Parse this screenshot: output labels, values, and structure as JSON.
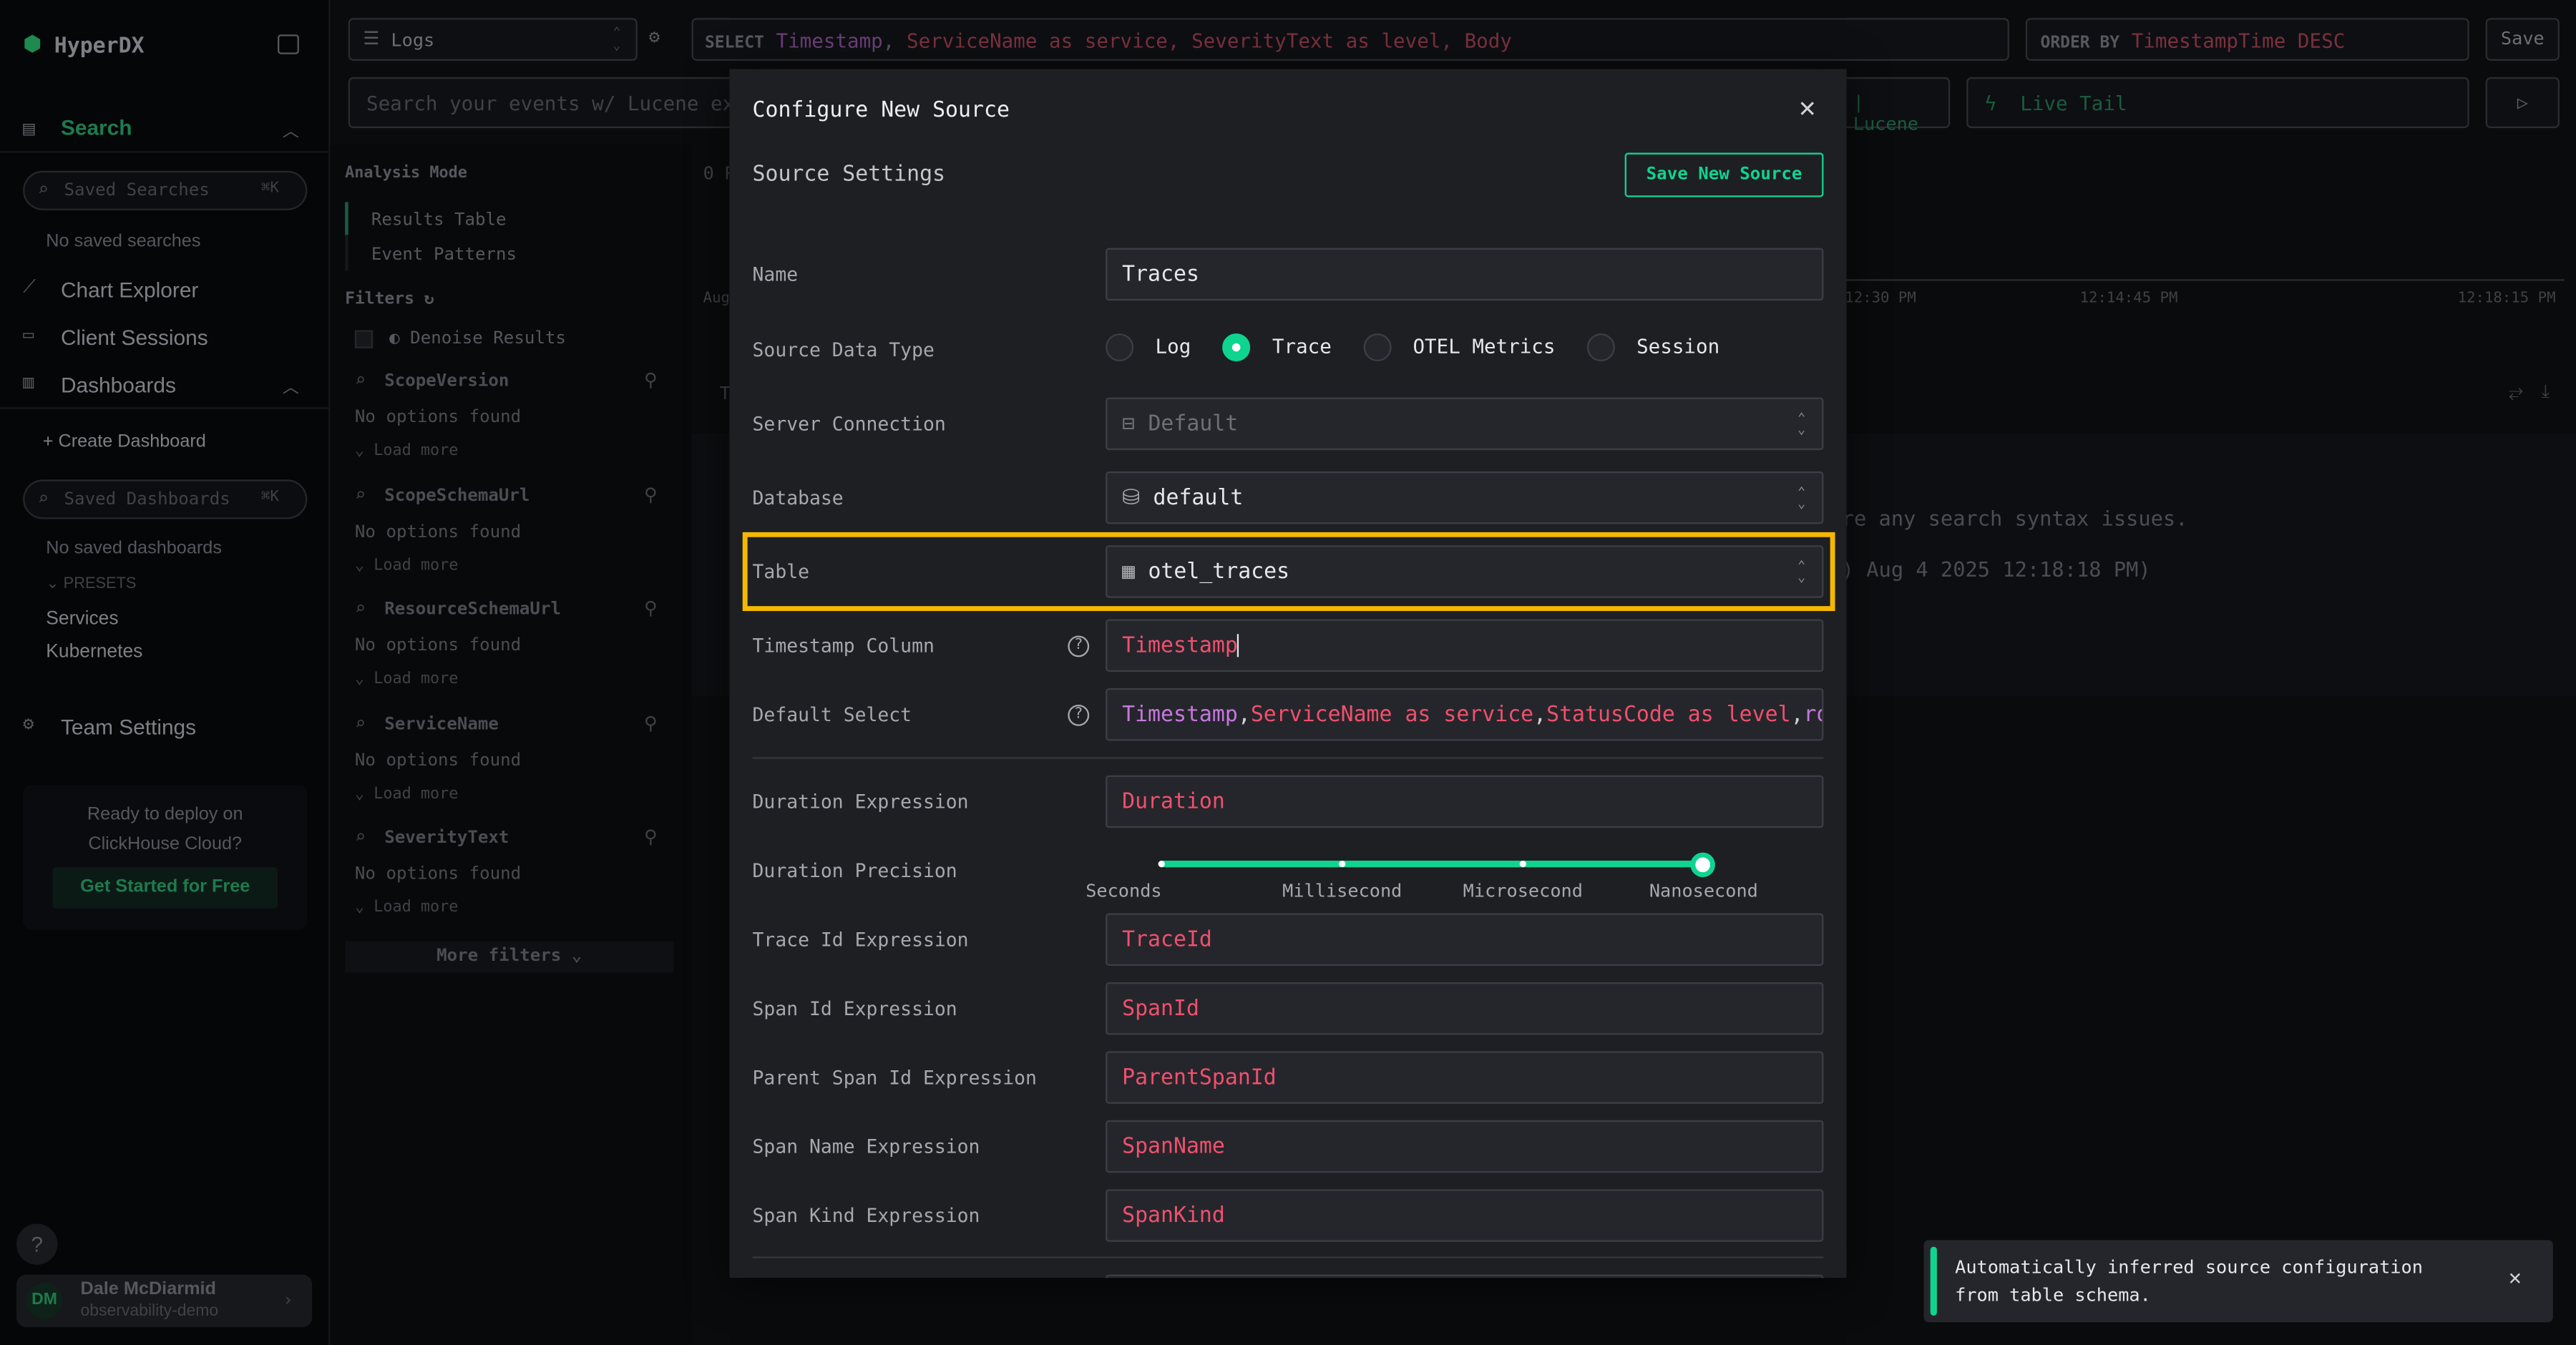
{
  "app": {
    "name": "HyperDX",
    "accent": "#0fd48f",
    "highlight": "#f5b800"
  },
  "sidebar": {
    "search_label": "Search",
    "saved_searches_placeholder": "Saved Searches",
    "shortcut": "⌘K",
    "no_saved_searches": "No saved searches",
    "chart_explorer": "Chart Explorer",
    "client_sessions": "Client Sessions",
    "dashboards": "Dashboards",
    "create_dashboard": "Create Dashboard",
    "saved_dashboards_placeholder": "Saved Dashboards",
    "no_saved_dashboards": "No saved dashboards",
    "presets_label": "PRESETS",
    "presets": [
      "Services",
      "Kubernetes"
    ],
    "team_settings": "Team Settings",
    "promo": {
      "text": "Ready to deploy on ClickHouse Cloud?",
      "button": "Get Started for Free"
    },
    "help": "?",
    "user": {
      "initials": "DM",
      "name": "Dale McDiarmid",
      "team": "observability-demo"
    }
  },
  "topbar": {
    "source": "Logs",
    "select_kw": "SELECT",
    "select_parts": [
      "Timestamp",
      ", ",
      "ServiceName as service, SeverityText as level, Body"
    ],
    "order_kw": "ORDER BY",
    "order_value": "TimestampTime DESC",
    "save": "Save",
    "search_placeholder": "Search your events w/ Lucene ex.",
    "lucene": "Lucene",
    "live_tail": "Live Tail"
  },
  "filters": {
    "analysis_mode": "Analysis Mode",
    "modes": [
      "Results Table",
      "Event Patterns"
    ],
    "filters_label": "Filters",
    "denoise": "Denoise Results",
    "groups": [
      {
        "name": "ScopeVersion",
        "empty": "No options found",
        "more": "Load more"
      },
      {
        "name": "ScopeSchemaUrl",
        "empty": "No options found",
        "more": "Load more"
      },
      {
        "name": "ResourceSchemaUrl",
        "empty": "No options found",
        "more": "Load more"
      },
      {
        "name": "ServiceName",
        "empty": "No options found",
        "more": "Load more"
      },
      {
        "name": "SeverityText",
        "empty": "No options found",
        "more": "Load more"
      }
    ],
    "more_filters": "More filters"
  },
  "results": {
    "count_prefix": "0 R",
    "axis_start": "Aug",
    "ticks": [
      "12:30 PM",
      "12:14:45 PM",
      "12:18:15 PM"
    ],
    "table_prefix": "T",
    "msg1": "re any search syntax issues.",
    "msg2": ") Aug 4 2025 12:18:18 PM)"
  },
  "modal": {
    "title": "Configure New Source",
    "section": "Source Settings",
    "save_button": "Save New Source",
    "fields": {
      "name": {
        "label": "Name",
        "value": "Traces"
      },
      "type": {
        "label": "Source Data Type",
        "options": [
          "Log",
          "Trace",
          "OTEL Metrics",
          "Session"
        ],
        "selected": "Trace"
      },
      "server": {
        "label": "Server Connection",
        "value": "Default"
      },
      "database": {
        "label": "Database",
        "value": "default"
      },
      "table": {
        "label": "Table",
        "value": "otel_traces"
      },
      "timestamp": {
        "label": "Timestamp Column",
        "value": "Timestamp"
      },
      "default_select": {
        "label": "Default Select",
        "parts": [
          "Timestamp",
          ", ",
          "ServiceName as service",
          ", ",
          "StatusCode as level",
          ", ",
          "ro"
        ]
      },
      "duration": {
        "label": "Duration Expression",
        "value": "Duration"
      },
      "precision": {
        "label": "Duration Precision",
        "options": [
          "Seconds",
          "Millisecond",
          "Microsecond",
          "Nanosecond"
        ],
        "selected": "Nanosecond"
      },
      "trace_id": {
        "label": "Trace Id Expression",
        "value": "TraceId"
      },
      "span_id": {
        "label": "Span Id Expression",
        "value": "SpanId"
      },
      "parent_span_id": {
        "label": "Parent Span Id Expression",
        "value": "ParentSpanId"
      },
      "span_name": {
        "label": "Span Name Expression",
        "value": "SpanName"
      },
      "span_kind": {
        "label": "Span Kind Expression",
        "value": "SpanKind"
      }
    }
  },
  "toast": {
    "message": "Automatically inferred source configuration from table schema."
  }
}
